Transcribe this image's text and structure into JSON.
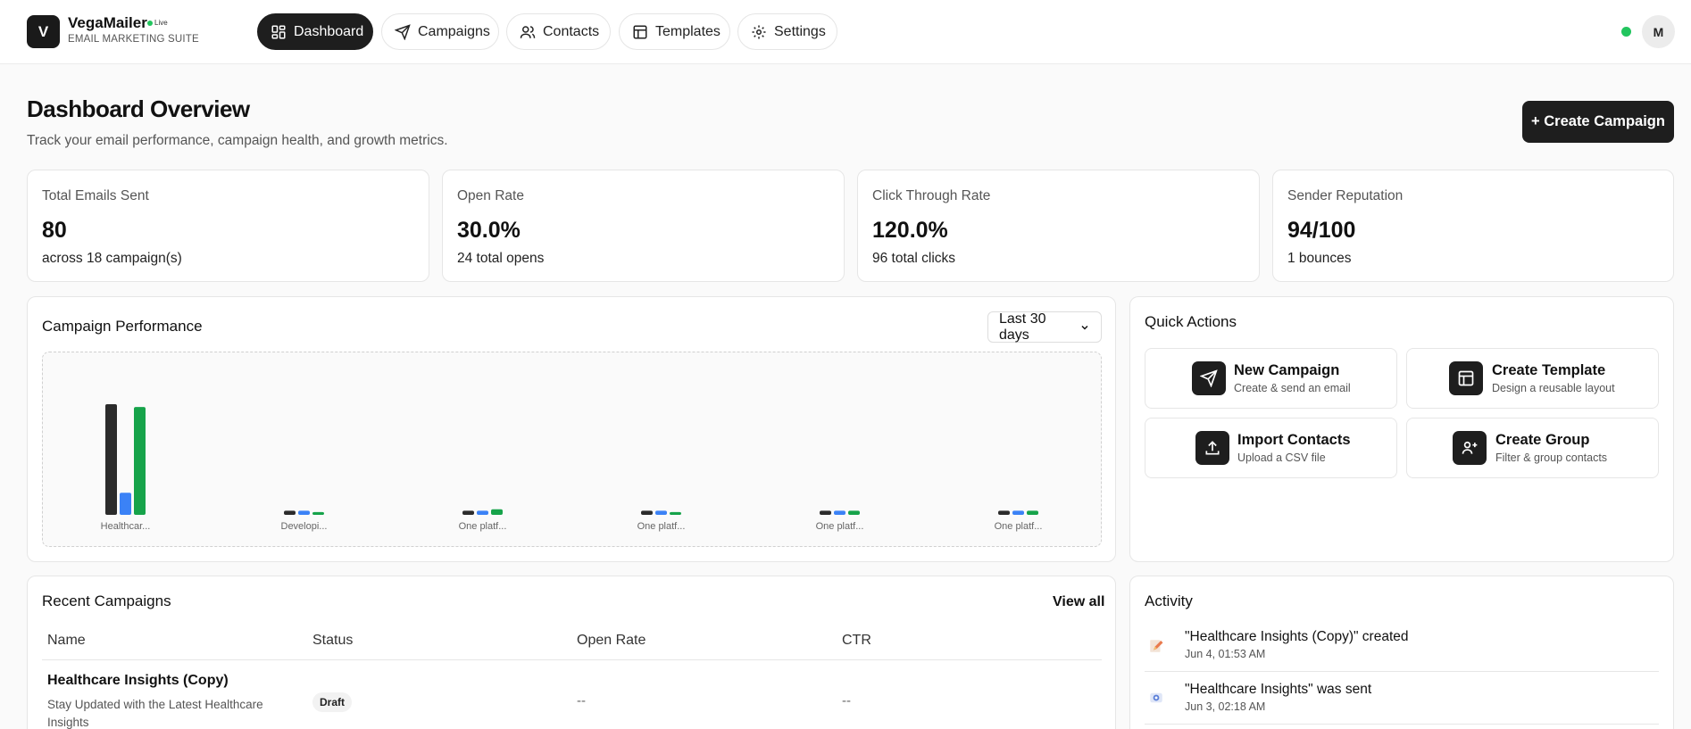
{
  "brand": {
    "logo_letter": "V",
    "name": "VegaMailer",
    "live_label": "Live",
    "subtitle": "EMAIL MARKETING SUITE"
  },
  "nav": [
    {
      "label": "Dashboard",
      "icon": "dashboard-icon",
      "active": true
    },
    {
      "label": "Campaigns",
      "icon": "send-icon",
      "active": false
    },
    {
      "label": "Contacts",
      "icon": "users-icon",
      "active": false
    },
    {
      "label": "Templates",
      "icon": "template-icon",
      "active": false
    },
    {
      "label": "Settings",
      "icon": "gear-icon",
      "active": false
    }
  ],
  "user": {
    "initial": "M",
    "online_color": "#22c55e"
  },
  "page": {
    "title": "Dashboard Overview",
    "subtitle": "Track your email performance, campaign health, and growth metrics.",
    "create_button": "+ Create Campaign"
  },
  "stats": [
    {
      "label": "Total Emails Sent",
      "value": "80",
      "sub": "across 18 campaign(s)"
    },
    {
      "label": "Open Rate",
      "value": "30.0%",
      "sub": "24 total opens"
    },
    {
      "label": "Click Through Rate",
      "value": "120.0%",
      "sub": "96 total clicks"
    },
    {
      "label": "Sender Reputation",
      "value": "94/100",
      "sub": "1 bounces"
    }
  ],
  "performance": {
    "title": "Campaign Performance",
    "range": "Last 30 days"
  },
  "chart_data": {
    "type": "bar",
    "categories": [
      "Healthcar...",
      "Developi...",
      "One platf...",
      "One platf...",
      "One platf...",
      "One platf..."
    ],
    "series": [
      {
        "color": "#2b2b2b",
        "values": [
          80,
          3,
          3,
          3,
          3,
          3
        ]
      },
      {
        "color": "#3b82f6",
        "values": [
          16,
          3,
          3,
          3,
          3,
          3
        ]
      },
      {
        "color": "#16a34a",
        "values": [
          78,
          2,
          4,
          2,
          3,
          3
        ]
      }
    ],
    "ylim": [
      0,
      80
    ],
    "grid": false
  },
  "quick_actions": {
    "title": "Quick Actions",
    "items": [
      {
        "title": "New Campaign",
        "sub": "Create & send an email",
        "icon": "send-icon"
      },
      {
        "title": "Create Template",
        "sub": "Design a reusable layout",
        "icon": "template-icon"
      },
      {
        "title": "Import Contacts",
        "sub": "Upload a CSV file",
        "icon": "upload-icon"
      },
      {
        "title": "Create Group",
        "sub": "Filter & group contacts",
        "icon": "group-icon"
      }
    ]
  },
  "recent": {
    "title": "Recent Campaigns",
    "view_all": "View all",
    "columns": [
      "Name",
      "Status",
      "Open Rate",
      "CTR"
    ],
    "rows": [
      {
        "name": "Healthcare Insights (Copy)",
        "desc": "Stay Updated with the Latest Healthcare Insights",
        "status": "Draft",
        "open_rate": "--",
        "ctr": "--"
      }
    ]
  },
  "activity": {
    "title": "Activity",
    "items": [
      {
        "text": "\"Healthcare Insights (Copy)\" created",
        "time": "Jun 4, 01:53 AM",
        "icon": "pencil-icon"
      },
      {
        "text": "\"Healthcare Insights\" was sent",
        "time": "Jun 3, 02:18 AM",
        "icon": "send-status-icon"
      }
    ]
  }
}
